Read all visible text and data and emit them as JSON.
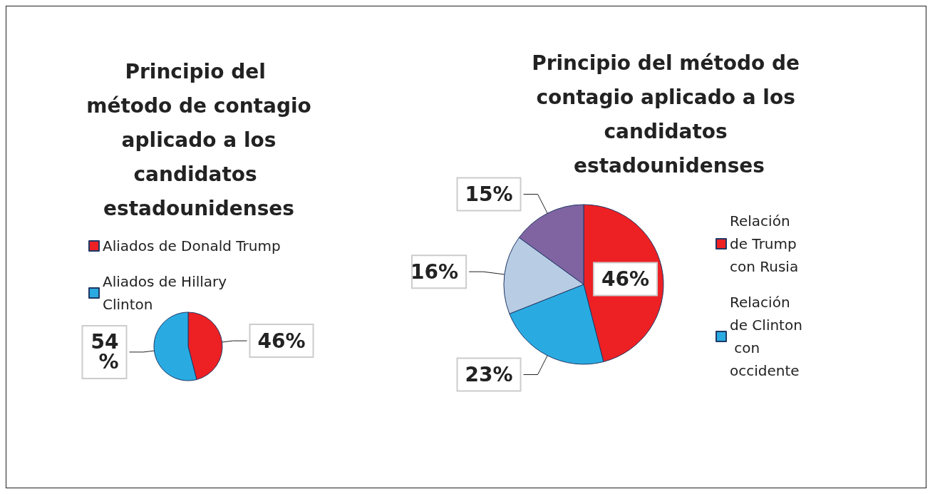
{
  "chart_data": [
    {
      "type": "pie",
      "title": "Principio del método de contagio aplicado a los candidatos estadounidenses",
      "categories": [
        "Aliados de Donald Trump",
        "Aliados de Hillary Clinton"
      ],
      "values": [
        46,
        54
      ],
      "colors": [
        "#ed2024",
        "#29abe2"
      ],
      "legend": "top",
      "value_labels": [
        "46%",
        "54 %"
      ]
    },
    {
      "type": "pie",
      "title": "Principio del método de contagio aplicado a los candidatos estadounidenses",
      "categories": [
        "Relación de Trump con Rusia",
        "Relación de Clinton con occidente",
        null,
        null
      ],
      "values": [
        46,
        23,
        16,
        15
      ],
      "colors": [
        "#ed2024",
        "#29abe2",
        "#b8cce4",
        "#8064a2"
      ],
      "legend": "right",
      "value_labels": [
        "46%",
        "23%",
        "16%",
        "15%"
      ]
    }
  ]
}
